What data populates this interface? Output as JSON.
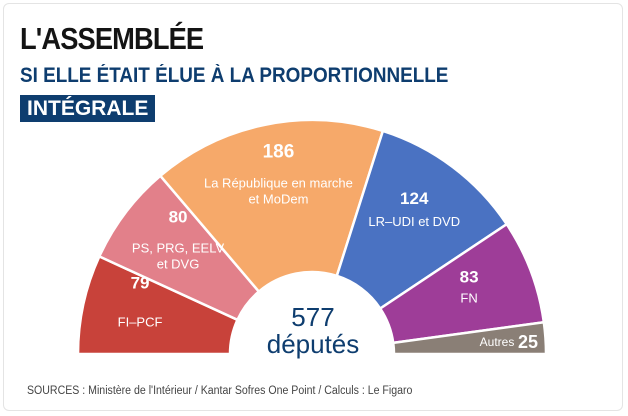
{
  "header": {
    "title": "L'ASSEMBLÉE",
    "subtitle_line1": "SI ELLE ÉTAIT ÉLUE À LA PROPORTIONNELLE",
    "subtitle_line2": "INTÉGRALE"
  },
  "center": {
    "total": "577",
    "unit": "députés"
  },
  "chart_data": {
    "type": "pie",
    "subtype": "parliament-hemicycle",
    "total": 577,
    "slices": [
      {
        "name": "FI-PCF",
        "label_lines": [
          "FI–PCF"
        ],
        "value": 79,
        "color": "#c8423a"
      },
      {
        "name": "PS, PRG, EELV et DVG",
        "label_lines": [
          "PS, PRG, EELV",
          "et DVG"
        ],
        "value": 80,
        "color": "#e2808a"
      },
      {
        "name": "La République en marche et MoDem",
        "label_lines": [
          "La République en marche",
          "et MoDem"
        ],
        "value": 186,
        "color": "#f6a96a"
      },
      {
        "name": "LR-UDI et DVD",
        "label_lines": [
          "LR–UDI et DVD"
        ],
        "value": 124,
        "color": "#4a72c2"
      },
      {
        "name": "FN",
        "label_lines": [
          "FN"
        ],
        "value": 83,
        "color": "#9e3d98"
      },
      {
        "name": "Autres",
        "label_lines": [
          "Autres"
        ],
        "value": 25,
        "color": "#8a7f76"
      }
    ]
  },
  "footer": {
    "source": "SOURCES : Ministère de l'Intérieur / Kantar Sofres One Point / Calculs : Le Figaro"
  }
}
